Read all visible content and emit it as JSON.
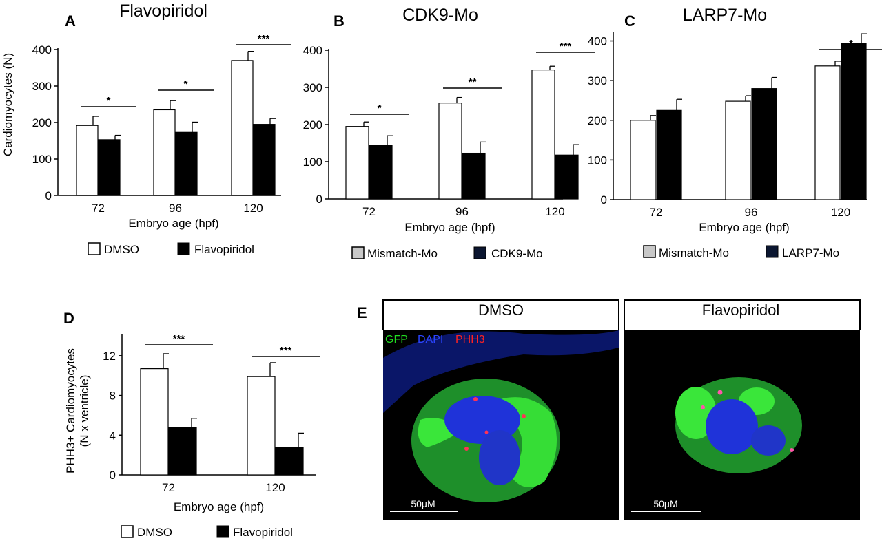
{
  "colors": {
    "white_bar": "#ffffff",
    "black_bar": "#000000",
    "mismatch_swatch": "#c8c8c8",
    "mo_swatch": "#0b1630",
    "gfp": "#22dd22",
    "dapi": "#2233ee",
    "phh3": "#ff2222"
  },
  "chart_data": [
    {
      "panel": "A",
      "type": "bar",
      "title": "Flavopiridol",
      "ylabel": "Cardiomyocytes (N)",
      "xlabel": "Embryo age (hpf)",
      "categories": [
        "72",
        "96",
        "120"
      ],
      "ylim": [
        0,
        400
      ],
      "yticks": [
        0,
        100,
        200,
        300,
        400
      ],
      "series": [
        {
          "name": "DMSO",
          "values": [
            192,
            235,
            370
          ],
          "errors": [
            25,
            25,
            25
          ],
          "color": "#ffffff"
        },
        {
          "name": "Flavopiridol",
          "values": [
            153,
            173,
            195
          ],
          "errors": [
            12,
            28,
            16
          ],
          "color": "#000000"
        }
      ],
      "significance": [
        "*",
        "*",
        "***"
      ]
    },
    {
      "panel": "B",
      "type": "bar",
      "title": "CDK9-Mo",
      "ylabel": "",
      "xlabel": "Embryo age (hpf)",
      "categories": [
        "72",
        "96",
        "120"
      ],
      "ylim": [
        0,
        400
      ],
      "yticks": [
        0,
        100,
        200,
        300,
        400
      ],
      "series": [
        {
          "name": "Mismatch-Mo",
          "values": [
            195,
            258,
            347
          ],
          "errors": [
            12,
            15,
            10
          ],
          "color": "#ffffff"
        },
        {
          "name": "CDK9-Mo",
          "values": [
            145,
            123,
            118
          ],
          "errors": [
            25,
            30,
            28
          ],
          "color": "#000000"
        }
      ],
      "legend_swatches": [
        "#c8c8c8",
        "#0b1630"
      ],
      "significance": [
        "*",
        "**",
        "***"
      ]
    },
    {
      "panel": "C",
      "type": "bar",
      "title": "LARP7-Mo",
      "ylabel": "",
      "xlabel": "Embryo age (hpf)",
      "categories": [
        "72",
        "96",
        "120"
      ],
      "ylim": [
        0,
        420
      ],
      "yticks": [
        0,
        100,
        200,
        300,
        400
      ],
      "series": [
        {
          "name": "Mismatch-Mo",
          "values": [
            200,
            248,
            337
          ],
          "errors": [
            12,
            14,
            12
          ],
          "color": "#ffffff"
        },
        {
          "name": "LARP7-Mo",
          "values": [
            225,
            280,
            393
          ],
          "errors": [
            28,
            28,
            25
          ],
          "color": "#000000"
        }
      ],
      "legend_swatches": [
        "#c8c8c8",
        "#0b1630"
      ],
      "significance": [
        "",
        "",
        "*"
      ]
    },
    {
      "panel": "D",
      "type": "bar",
      "title": "",
      "ylabel": "PHH3+ Cardiomyocytes",
      "ylabel2": "(N x ventricle)",
      "xlabel": "Embryo age (hpf)",
      "categories": [
        "72",
        "120"
      ],
      "ylim": [
        0,
        14
      ],
      "yticks": [
        0,
        4,
        8,
        12
      ],
      "series": [
        {
          "name": "DMSO",
          "values": [
            10.7,
            9.9
          ],
          "errors": [
            1.5,
            1.4
          ],
          "color": "#ffffff"
        },
        {
          "name": "Flavopiridol",
          "values": [
            4.8,
            2.8
          ],
          "errors": [
            0.9,
            1.4
          ],
          "color": "#000000"
        }
      ],
      "significance": [
        "***",
        "***"
      ]
    }
  ],
  "panel_e": {
    "label": "E",
    "headers": [
      "DMSO",
      "Flavopiridol"
    ],
    "channels": [
      {
        "name": "GFP",
        "color": "#22dd22"
      },
      {
        "name": "DAPI",
        "color": "#2233ee"
      },
      {
        "name": "PHH3",
        "color": "#ff2222"
      }
    ],
    "scale_bar": "50μM"
  }
}
